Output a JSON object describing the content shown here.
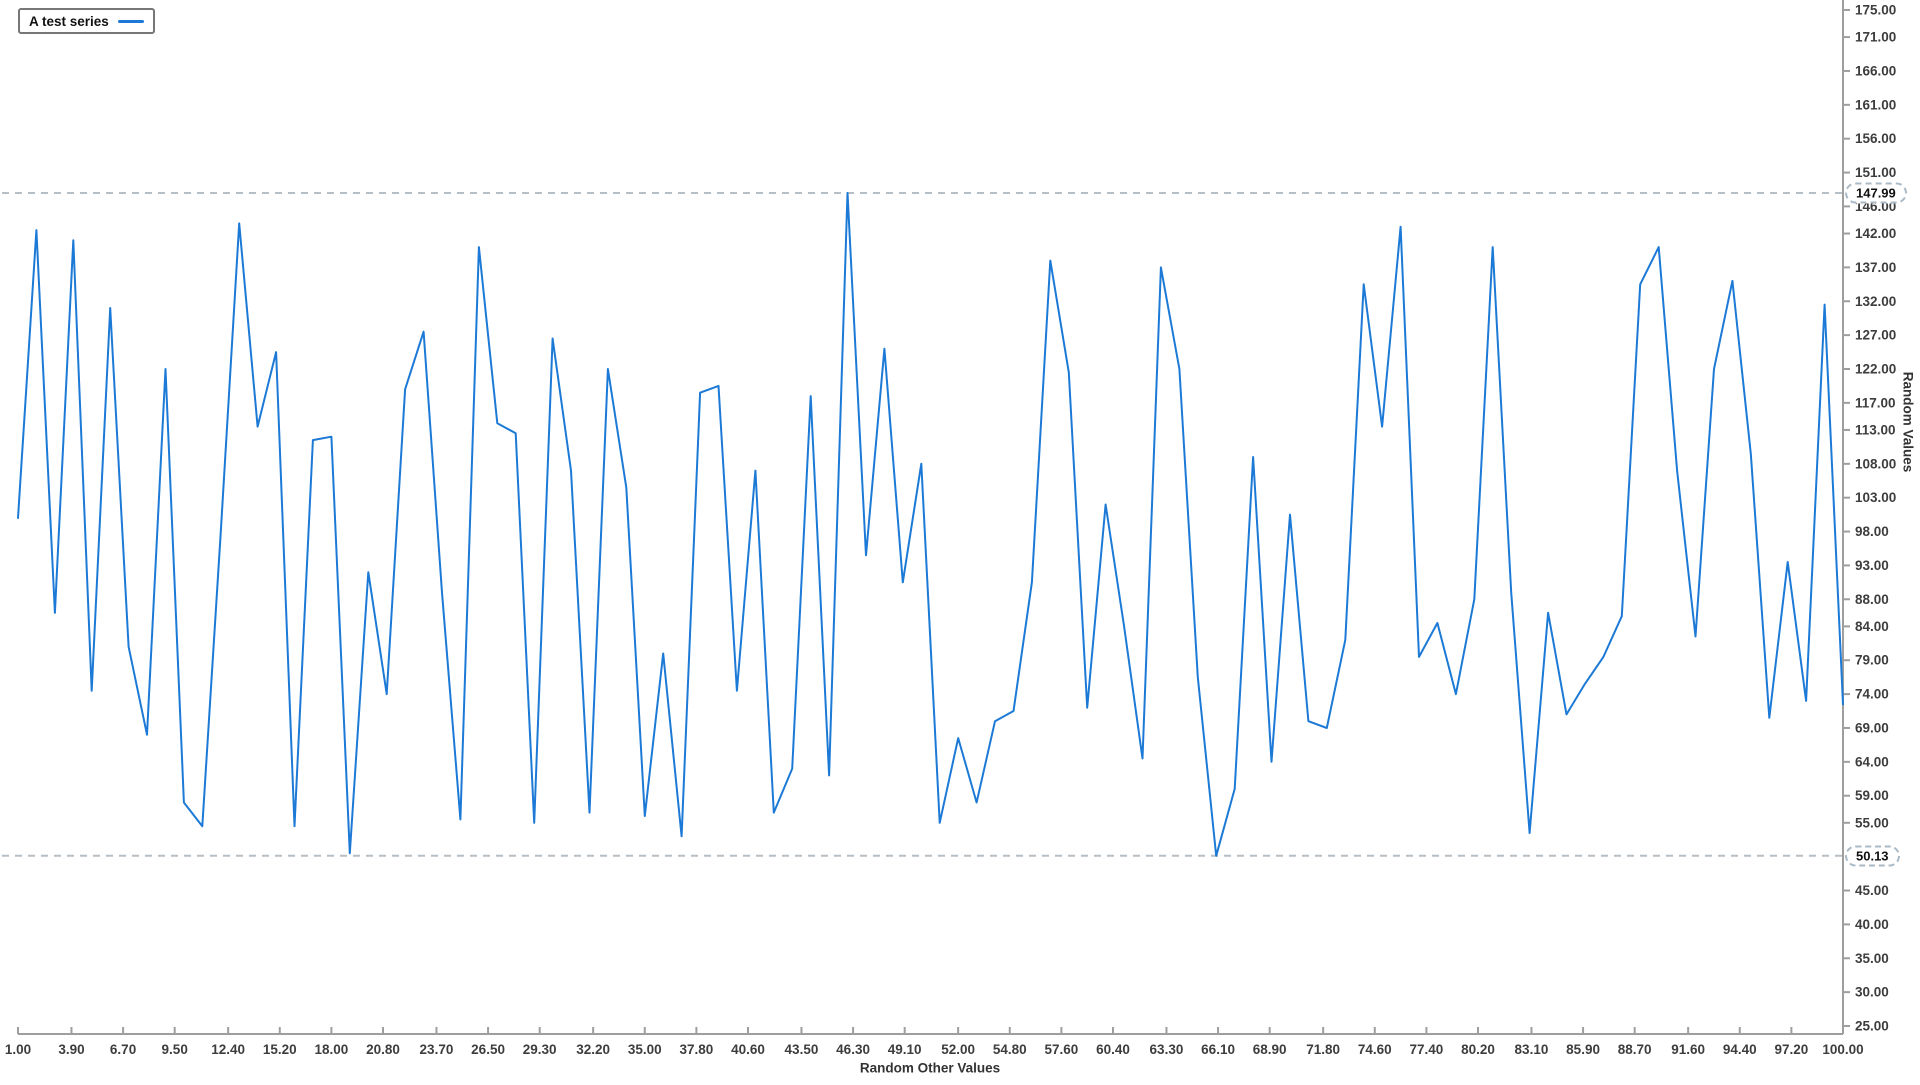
{
  "legend": {
    "label": "A test series"
  },
  "colors": {
    "series": "#1c7ad6",
    "guide": "#b6bec6",
    "axis": "#9e9e9e",
    "tick_text": "#3d3d3d"
  },
  "guides": {
    "max": {
      "label": "147.99",
      "value": 147.99
    },
    "min": {
      "label": "50.13",
      "value": 50.13
    }
  },
  "y_axis": {
    "title": "Random Values",
    "min": 25,
    "max": 175,
    "ticks": [
      "175.00",
      "171.00",
      "166.00",
      "161.00",
      "156.00",
      "151.00",
      "146.00",
      "142.00",
      "137.00",
      "132.00",
      "127.00",
      "122.00",
      "117.00",
      "113.00",
      "108.00",
      "103.00",
      "98.00",
      "93.00",
      "88.00",
      "84.00",
      "79.00",
      "74.00",
      "69.00",
      "64.00",
      "59.00",
      "55.00",
      "45.00",
      "40.00",
      "35.00",
      "30.00",
      "25.00"
    ],
    "tick_values": [
      175,
      171,
      166,
      161,
      156,
      151,
      146,
      142,
      137,
      132,
      127,
      122,
      117,
      113,
      108,
      103,
      98,
      93,
      88,
      84,
      79,
      74,
      69,
      64,
      59,
      55,
      45,
      40,
      35,
      30,
      25
    ]
  },
  "x_axis": {
    "title": "Random Other Values",
    "min": 1,
    "max": 100,
    "ticks": [
      "1.00",
      "3.90",
      "6.70",
      "9.50",
      "12.40",
      "15.20",
      "18.00",
      "20.80",
      "23.70",
      "26.50",
      "29.30",
      "32.20",
      "35.00",
      "37.80",
      "40.60",
      "43.50",
      "46.30",
      "49.10",
      "52.00",
      "54.80",
      "57.60",
      "60.40",
      "63.30",
      "66.10",
      "68.90",
      "71.80",
      "74.60",
      "77.40",
      "80.20",
      "83.10",
      "85.90",
      "88.70",
      "91.60",
      "94.40",
      "97.20",
      "100.00"
    ],
    "tick_values": [
      1,
      3.9,
      6.7,
      9.5,
      12.4,
      15.2,
      18,
      20.8,
      23.7,
      26.5,
      29.3,
      32.2,
      35,
      37.8,
      40.6,
      43.5,
      46.3,
      49.1,
      52,
      54.8,
      57.6,
      60.4,
      63.3,
      66.1,
      68.9,
      71.8,
      74.6,
      77.4,
      80.2,
      83.1,
      85.9,
      88.7,
      91.6,
      94.4,
      97.2,
      100
    ],
    "x_start": 1,
    "x_step": 1
  },
  "chart_data": {
    "type": "line",
    "title": "",
    "xlabel": "Random Other Values",
    "ylabel": "Random Values",
    "xlim": [
      1,
      100
    ],
    "ylim": [
      25,
      175
    ],
    "grid": false,
    "legend_position": "top-left",
    "annotations": [
      "max guide 147.99 dashed",
      "min guide 50.13 dashed"
    ],
    "series": [
      {
        "name": "A test series",
        "x_start": 1,
        "x_step": 1,
        "values": [
          100,
          142.5,
          86,
          141,
          74.5,
          131,
          81,
          68,
          122,
          58,
          54.5,
          98,
          143.5,
          113.5,
          124.5,
          54.5,
          111.5,
          112,
          50.5,
          92,
          74,
          119,
          127.5,
          89,
          55.5,
          140,
          114,
          112.5,
          55,
          126.5,
          107,
          56.5,
          122,
          104.5,
          56,
          80,
          53,
          118.5,
          119.5,
          74.5,
          107,
          56.5,
          63,
          118,
          62,
          147.99,
          94.5,
          125,
          90.5,
          108,
          55,
          67.5,
          58,
          70,
          71.5,
          90.5,
          138,
          121.5,
          72,
          102,
          84,
          64.5,
          137,
          122,
          76.5,
          50.13,
          60,
          109,
          64,
          100.5,
          70,
          69,
          82,
          134.5,
          113.5,
          143,
          79.5,
          84.5,
          74,
          88,
          140,
          89,
          53.5,
          86,
          71,
          75.5,
          79.5,
          85.5,
          134.5,
          140,
          107,
          82.5,
          122,
          135,
          109.5,
          70.5,
          93.5,
          73,
          131.5,
          72.5
        ]
      }
    ]
  }
}
